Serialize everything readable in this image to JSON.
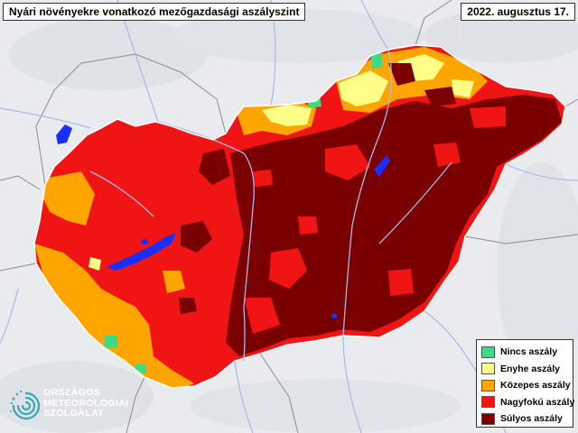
{
  "title": "Nyári növényekre vonatkozó mezőgazdasági aszályszint",
  "date": "2022. augusztus 17.",
  "colors": {
    "background": "#e9ebee",
    "border": "#8c8c8c",
    "river": "#a8b8e8",
    "lake": "#1a2fff",
    "none": "#3ddc84",
    "mild": "#ffff88",
    "moderate": "#ffa500",
    "severe": "#f01414",
    "extreme": "#7a0000",
    "logo_teal": "#3aa6b0"
  },
  "legend": {
    "items": [
      {
        "key": "none",
        "label": "Nincs aszály",
        "color": "#3ddc84"
      },
      {
        "key": "mild",
        "label": "Enyhe aszály",
        "color": "#ffff88"
      },
      {
        "key": "moderate",
        "label": "Közepes aszály",
        "color": "#ffa500"
      },
      {
        "key": "severe",
        "label": "Nagyfokú aszály",
        "color": "#f01414"
      },
      {
        "key": "extreme",
        "label": "Súlyos aszály",
        "color": "#7a0000"
      }
    ]
  },
  "logo": {
    "line1": "ORSZÁGOS",
    "line2": "METEOROLÓGIAI",
    "line3": "SZOLGÁLAT",
    "icon": "met-service-swirl-icon"
  }
}
